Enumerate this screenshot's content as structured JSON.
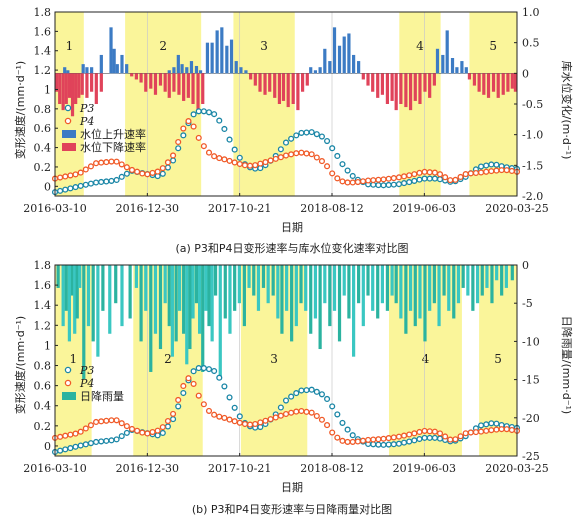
{
  "chart_data": [
    {
      "type": "line",
      "caption": "(a) P3和P4日变形速率与库水位变化速率对比图",
      "xlabel": "日期",
      "ylabel_left": "变形速度/(mm·d⁻¹)",
      "ylabel_right": "库水位变化/(m·d⁻¹)",
      "xticks": [
        "2016-03-10",
        "2016-12-30",
        "2017-10-21",
        "2018-08-12",
        "2019-06-03",
        "2020-03-25"
      ],
      "xlim": [
        "2016-03-10",
        "2020-03-25"
      ],
      "ylim_left": [
        -0.1,
        1.8
      ],
      "ylim_right": [
        -2.0,
        1.0
      ],
      "yticks_left": [
        0,
        0.2,
        0.4,
        0.6,
        0.8,
        1.0,
        1.2,
        1.4,
        1.6,
        1.8
      ],
      "yticks_right": [
        -2.0,
        -1.5,
        -1.0,
        -0.5,
        0,
        0.5,
        1.0
      ],
      "zones": [
        {
          "label": "1",
          "start": "2016-03-10",
          "end": "2016-06-10"
        },
        {
          "label": "2",
          "start": "2016-10-20",
          "end": "2017-06-20"
        },
        {
          "label": "3",
          "start": "2017-10-01",
          "end": "2018-04-15"
        },
        {
          "label": "4",
          "start": "2019-03-15",
          "end": "2019-07-25"
        },
        {
          "label": "5",
          "start": "2019-10-25",
          "end": "2020-03-25"
        }
      ],
      "series": [
        {
          "name": "P3",
          "color": "#1a86a6",
          "x": [
            "2016-03-10",
            "2016-05-25",
            "2016-07-20",
            "2016-09-20",
            "2016-11-10",
            "2016-12-25",
            "2017-02-10",
            "2017-03-20",
            "2017-04-15",
            "2017-05-05",
            "2017-05-25",
            "2017-06-15",
            "2017-07-10",
            "2017-08-05",
            "2017-09-01",
            "2017-10-01",
            "2017-11-01",
            "2017-12-01",
            "2018-01-01",
            "2018-02-10",
            "2018-03-20",
            "2018-05-01",
            "2018-06-10",
            "2018-07-20",
            "2018-08-20",
            "2018-09-20",
            "2018-10-25",
            "2018-12-05",
            "2019-01-20",
            "2019-03-10",
            "2019-04-25",
            "2019-06-01",
            "2019-07-15",
            "2019-09-01",
            "2019-10-15",
            "2019-11-25",
            "2020-01-10",
            "2020-02-15",
            "2020-03-25"
          ],
          "y": [
            -0.06,
            0.0,
            0.04,
            0.06,
            0.16,
            0.13,
            0.1,
            0.25,
            0.45,
            0.62,
            0.74,
            0.78,
            0.77,
            0.74,
            0.6,
            0.4,
            0.24,
            0.18,
            0.19,
            0.3,
            0.46,
            0.55,
            0.56,
            0.5,
            0.36,
            0.2,
            0.08,
            0.02,
            0.01,
            0.02,
            0.05,
            0.08,
            0.08,
            0.04,
            0.1,
            0.2,
            0.23,
            0.2,
            0.18
          ]
        },
        {
          "name": "P4",
          "color": "#f05a28",
          "x": [
            "2016-03-10",
            "2016-05-25",
            "2016-07-20",
            "2016-09-20",
            "2016-11-10",
            "2016-12-25",
            "2017-02-10",
            "2017-03-20",
            "2017-04-15",
            "2017-05-05",
            "2017-05-25",
            "2017-06-15",
            "2017-07-10",
            "2017-08-05",
            "2017-09-01",
            "2017-10-01",
            "2017-11-01",
            "2017-12-01",
            "2018-01-01",
            "2018-02-10",
            "2018-03-20",
            "2018-05-01",
            "2018-06-10",
            "2018-07-20",
            "2018-08-20",
            "2018-09-20",
            "2018-10-25",
            "2018-12-05",
            "2019-01-20",
            "2019-03-10",
            "2019-04-25",
            "2019-06-01",
            "2019-07-15",
            "2019-09-01",
            "2019-10-15",
            "2019-11-25",
            "2020-01-10",
            "2020-02-15",
            "2020-03-25"
          ],
          "y": [
            0.08,
            0.13,
            0.24,
            0.26,
            0.17,
            0.12,
            0.16,
            0.3,
            0.52,
            0.69,
            0.63,
            0.48,
            0.36,
            0.3,
            0.28,
            0.25,
            0.22,
            0.21,
            0.24,
            0.28,
            0.32,
            0.35,
            0.33,
            0.24,
            0.1,
            0.04,
            0.04,
            0.06,
            0.07,
            0.09,
            0.12,
            0.15,
            0.14,
            0.05,
            0.13,
            0.14,
            0.16,
            0.17,
            0.15
          ]
        }
      ],
      "bars": [
        {
          "name": "水位上升速率",
          "color": "#3c7bc4",
          "x": [
            "2016-04-10",
            "2016-04-20",
            "2016-06-08",
            "2016-06-20",
            "2016-07-05",
            "2016-08-05",
            "2016-09-05",
            "2016-09-15",
            "2016-09-25",
            "2016-10-10",
            "2016-10-25",
            "2017-03-10",
            "2017-03-25",
            "2017-04-08",
            "2017-04-20",
            "2017-05-05",
            "2017-05-20",
            "2017-06-05",
            "2017-06-18",
            "2017-07-10",
            "2017-07-25",
            "2017-08-10",
            "2017-08-25",
            "2017-09-10",
            "2017-09-25",
            "2017-10-10",
            "2017-10-25",
            "2017-11-10",
            "2018-06-05",
            "2018-06-20",
            "2018-07-05",
            "2018-07-20",
            "2018-08-05",
            "2018-08-20",
            "2018-09-05",
            "2018-09-20",
            "2018-10-05",
            "2018-10-20",
            "2018-11-05",
            "2019-07-15",
            "2019-08-01",
            "2019-08-15",
            "2019-09-01",
            "2019-09-15",
            "2019-10-01",
            "2019-10-15"
          ],
          "y": [
            0.1,
            0.05,
            0.15,
            0.1,
            0.1,
            0.3,
            0.75,
            0.4,
            0.15,
            0.3,
            0.15,
            0.05,
            0.1,
            0.3,
            0.15,
            0.1,
            0.2,
            0.12,
            0.05,
            0.5,
            0.5,
            0.7,
            0.75,
            0.45,
            0.55,
            0.2,
            0.1,
            0.05,
            0.1,
            0.05,
            0.1,
            0.4,
            0.2,
            0.75,
            0.45,
            0.6,
            0.65,
            0.3,
            0.2,
            0.4,
            0.3,
            0.7,
            0.25,
            0.1,
            0.2,
            0.1
          ]
        },
        {
          "name": "水位下降速率",
          "color": "#e0435a",
          "x": [
            "2016-03-15",
            "2016-03-25",
            "2016-04-05",
            "2016-04-15",
            "2016-04-25",
            "2016-05-05",
            "2016-05-15",
            "2016-05-25",
            "2016-06-05",
            "2016-06-20",
            "2016-07-05",
            "2016-07-20",
            "2016-08-05",
            "2016-11-10",
            "2016-11-25",
            "2016-12-10",
            "2016-12-25",
            "2017-01-10",
            "2017-01-25",
            "2017-02-10",
            "2017-02-25",
            "2017-03-10",
            "2017-03-25",
            "2017-04-10",
            "2017-04-25",
            "2017-05-10",
            "2017-05-25",
            "2017-06-10",
            "2017-06-25",
            "2017-11-25",
            "2017-12-10",
            "2017-12-25",
            "2018-01-10",
            "2018-01-25",
            "2018-02-10",
            "2018-02-25",
            "2018-03-10",
            "2018-03-25",
            "2018-04-10",
            "2018-04-25",
            "2018-05-10",
            "2018-05-25",
            "2018-11-20",
            "2018-12-05",
            "2018-12-20",
            "2019-01-05",
            "2019-01-20",
            "2019-02-05",
            "2019-02-20",
            "2019-03-05",
            "2019-03-20",
            "2019-04-05",
            "2019-04-20",
            "2019-05-05",
            "2019-05-20",
            "2019-06-05",
            "2019-06-20",
            "2019-07-05",
            "2019-10-25",
            "2019-11-10",
            "2019-11-25",
            "2019-12-10",
            "2019-12-25",
            "2020-01-10",
            "2020-01-25",
            "2020-02-10",
            "2020-02-25",
            "2020-03-10",
            "2020-03-20"
          ],
          "y": [
            -0.3,
            -0.5,
            -0.6,
            -0.5,
            -0.4,
            -0.7,
            -0.5,
            -0.4,
            -0.35,
            -0.4,
            -0.3,
            -0.5,
            -0.3,
            -0.05,
            -0.1,
            -0.15,
            -0.3,
            -0.25,
            -0.35,
            -0.2,
            -0.3,
            -0.4,
            -0.3,
            -0.35,
            -0.45,
            -0.4,
            -0.5,
            -0.6,
            -0.5,
            -0.1,
            -0.2,
            -0.3,
            -0.35,
            -0.3,
            -0.4,
            -0.5,
            -0.45,
            -0.55,
            -0.5,
            -0.6,
            -0.3,
            -0.2,
            -0.1,
            -0.2,
            -0.3,
            -0.4,
            -0.35,
            -0.5,
            -0.45,
            -0.6,
            -0.5,
            -0.55,
            -0.6,
            -0.45,
            -0.5,
            -0.3,
            -0.4,
            -0.2,
            -0.1,
            -0.2,
            -0.3,
            -0.35,
            -0.4,
            -0.3,
            -0.4,
            -0.35,
            -0.3,
            -0.25,
            -0.3
          ]
        }
      ]
    },
    {
      "type": "line",
      "caption": "(b) P3和P4日变形速率与日降雨量对比图",
      "xlabel": "日期",
      "ylabel_left": "变形速度/(mm·d⁻¹)",
      "ylabel_right": "日降雨量/(mm·d⁻¹)",
      "xticks": [
        "2016-03-10",
        "2016-12-30",
        "2017-10-21",
        "2018-08-12",
        "2019-06-03",
        "2020-03-25"
      ],
      "xlim": [
        "2016-03-10",
        "2020-03-25"
      ],
      "ylim_left": [
        -0.1,
        1.8
      ],
      "ylim_right": [
        -25,
        0
      ],
      "yticks_left": [
        0,
        0.2,
        0.4,
        0.6,
        0.8,
        1.0,
        1.2,
        1.4,
        1.6,
        1.8
      ],
      "yticks_right": [
        -25,
        -20,
        -15,
        -10,
        -5,
        0
      ],
      "zones": [
        {
          "label": "1",
          "start": "2016-03-10",
          "end": "2016-07-05"
        },
        {
          "label": "2",
          "start": "2016-11-15",
          "end": "2017-06-25"
        },
        {
          "label": "3",
          "start": "2017-10-25",
          "end": "2018-05-25"
        },
        {
          "label": "4",
          "start": "2019-02-10",
          "end": "2019-10-01"
        },
        {
          "label": "5",
          "start": "2019-11-25",
          "end": "2020-03-25"
        }
      ],
      "series": [
        {
          "name": "P3",
          "color": "#1a86a6",
          "x": [
            "2016-03-10",
            "2016-05-25",
            "2016-07-20",
            "2016-09-20",
            "2016-11-10",
            "2016-12-25",
            "2017-02-10",
            "2017-03-20",
            "2017-04-15",
            "2017-05-05",
            "2017-05-25",
            "2017-06-15",
            "2017-07-10",
            "2017-08-05",
            "2017-09-01",
            "2017-10-01",
            "2017-11-01",
            "2017-12-01",
            "2018-01-01",
            "2018-02-10",
            "2018-03-20",
            "2018-05-01",
            "2018-06-10",
            "2018-07-20",
            "2018-08-20",
            "2018-09-20",
            "2018-10-25",
            "2018-12-05",
            "2019-01-20",
            "2019-03-10",
            "2019-04-25",
            "2019-06-01",
            "2019-07-15",
            "2019-09-01",
            "2019-10-15",
            "2019-11-25",
            "2020-01-10",
            "2020-02-15",
            "2020-03-25"
          ],
          "y": [
            -0.06,
            0.0,
            0.04,
            0.06,
            0.16,
            0.13,
            0.1,
            0.25,
            0.45,
            0.62,
            0.74,
            0.78,
            0.77,
            0.74,
            0.6,
            0.4,
            0.24,
            0.18,
            0.19,
            0.3,
            0.46,
            0.55,
            0.56,
            0.5,
            0.36,
            0.2,
            0.08,
            0.02,
            0.01,
            0.02,
            0.05,
            0.08,
            0.08,
            0.04,
            0.1,
            0.2,
            0.23,
            0.2,
            0.18
          ]
        },
        {
          "name": "P4",
          "color": "#f05a28",
          "x": [
            "2016-03-10",
            "2016-05-25",
            "2016-07-20",
            "2016-09-20",
            "2016-11-10",
            "2016-12-25",
            "2017-02-10",
            "2017-03-20",
            "2017-04-15",
            "2017-05-05",
            "2017-05-25",
            "2017-06-15",
            "2017-07-10",
            "2017-08-05",
            "2017-09-01",
            "2017-10-01",
            "2017-11-01",
            "2017-12-01",
            "2018-01-01",
            "2018-02-10",
            "2018-03-20",
            "2018-05-01",
            "2018-06-10",
            "2018-07-20",
            "2018-08-20",
            "2018-09-20",
            "2018-10-25",
            "2018-12-05",
            "2019-01-20",
            "2019-03-10",
            "2019-04-25",
            "2019-06-01",
            "2019-07-15",
            "2019-09-01",
            "2019-10-15",
            "2019-11-25",
            "2020-01-10",
            "2020-02-15",
            "2020-03-25"
          ],
          "y": [
            0.08,
            0.13,
            0.24,
            0.26,
            0.17,
            0.12,
            0.16,
            0.3,
            0.52,
            0.69,
            0.63,
            0.48,
            0.36,
            0.3,
            0.28,
            0.25,
            0.22,
            0.21,
            0.24,
            0.28,
            0.32,
            0.35,
            0.33,
            0.24,
            0.1,
            0.04,
            0.04,
            0.06,
            0.07,
            0.09,
            0.12,
            0.15,
            0.14,
            0.05,
            0.13,
            0.14,
            0.16,
            0.17,
            0.15
          ]
        }
      ],
      "bars": [
        {
          "name": "日降雨量",
          "colors": [
            "#2bb3a0",
            "#3ac7c2"
          ],
          "x": [
            "2016-03-20",
            "2016-04-05",
            "2016-04-15",
            "2016-04-25",
            "2016-05-05",
            "2016-05-12",
            "2016-05-20",
            "2016-05-28",
            "2016-06-10",
            "2016-06-25",
            "2016-07-10",
            "2016-07-25",
            "2016-08-10",
            "2016-09-01",
            "2016-09-20",
            "2016-10-10",
            "2016-11-05",
            "2016-11-25",
            "2016-12-10",
            "2016-12-25",
            "2017-01-10",
            "2017-01-25",
            "2017-02-10",
            "2017-02-25",
            "2017-03-10",
            "2017-03-20",
            "2017-04-01",
            "2017-04-12",
            "2017-04-25",
            "2017-05-05",
            "2017-05-15",
            "2017-05-25",
            "2017-06-05",
            "2017-06-15",
            "2017-06-25",
            "2017-07-05",
            "2017-07-15",
            "2017-07-25",
            "2017-08-05",
            "2017-08-20",
            "2017-09-05",
            "2017-09-20",
            "2017-10-05",
            "2017-10-20",
            "2017-11-05",
            "2017-11-20",
            "2017-12-05",
            "2017-12-20",
            "2018-01-05",
            "2018-01-20",
            "2018-02-05",
            "2018-02-20",
            "2018-03-05",
            "2018-03-20",
            "2018-04-05",
            "2018-04-20",
            "2018-05-05",
            "2018-05-20",
            "2018-06-05",
            "2018-06-20",
            "2018-07-05",
            "2018-07-20",
            "2018-08-05",
            "2018-08-20",
            "2018-09-05",
            "2018-09-20",
            "2018-10-05",
            "2018-10-20",
            "2018-11-05",
            "2018-11-20",
            "2018-12-05",
            "2018-12-20",
            "2019-01-05",
            "2019-01-20",
            "2019-02-05",
            "2019-02-20",
            "2019-03-05",
            "2019-03-20",
            "2019-04-05",
            "2019-04-20",
            "2019-05-05",
            "2019-05-20",
            "2019-06-05",
            "2019-06-20",
            "2019-07-05",
            "2019-07-20",
            "2019-08-05",
            "2019-08-20",
            "2019-09-05",
            "2019-09-20",
            "2019-10-05",
            "2019-10-20",
            "2019-11-05",
            "2019-11-20",
            "2019-12-05",
            "2019-12-20",
            "2020-01-05",
            "2020-01-20",
            "2020-02-05",
            "2020-02-20",
            "2020-03-10"
          ],
          "y": [
            -3,
            -8,
            -6,
            -10,
            -4,
            -9,
            -7,
            -3,
            -15,
            -8,
            -10,
            -12,
            -6,
            -9,
            -5,
            -8,
            -7,
            -3,
            -10,
            -6,
            -14,
            -9,
            -11,
            -5,
            -8,
            -12,
            -10,
            -6,
            -9,
            -13,
            -11,
            -7,
            -5,
            -9,
            -14,
            -6,
            -8,
            -10,
            -4,
            -15,
            -7,
            -9,
            -6,
            -5,
            -8,
            -3,
            -4,
            -6,
            -3,
            -5,
            -4,
            -7,
            -9,
            -6,
            -10,
            -8,
            -5,
            -6,
            -9,
            -7,
            -11,
            -5,
            -8,
            -6,
            -10,
            -4,
            -7,
            -12,
            -5,
            -8,
            -4,
            -6,
            -7,
            -5,
            -6,
            -4,
            -5,
            -7,
            -9,
            -6,
            -8,
            -7,
            -10,
            -6,
            -5,
            -8,
            -4,
            -6,
            -7,
            -5,
            -3,
            -4,
            -6,
            -5,
            -4,
            -3,
            -5,
            -2,
            -4,
            -3,
            -2
          ]
        }
      ]
    }
  ]
}
